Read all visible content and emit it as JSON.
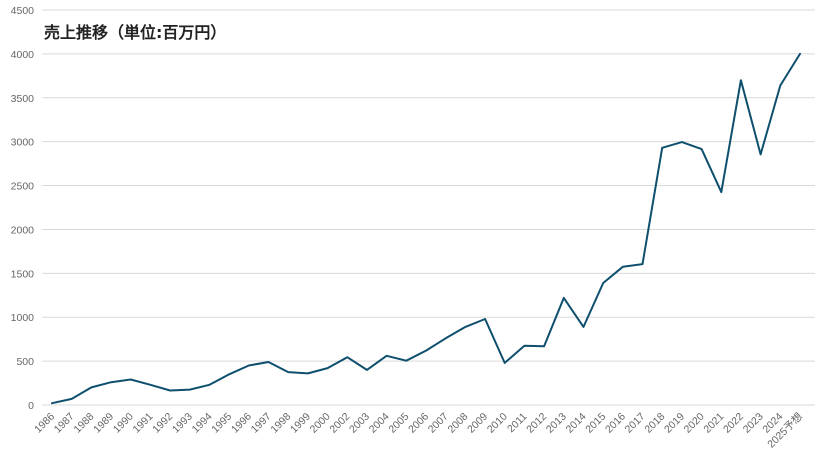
{
  "chart_data": {
    "type": "line",
    "title": "売上推移（単位:百万円）",
    "xlabel": "",
    "ylabel": "",
    "ylim": [
      0,
      4500
    ],
    "yticks": [
      0,
      500,
      1000,
      1500,
      2000,
      2500,
      3000,
      3500,
      4000,
      4500
    ],
    "grid": true,
    "categories": [
      "1986",
      "1987",
      "1988",
      "1989",
      "1990",
      "1991",
      "1992",
      "1993",
      "1994",
      "1995",
      "1996",
      "1997",
      "1998",
      "1999",
      "2000",
      "2002",
      "2003",
      "2004",
      "2005",
      "2006",
      "2007",
      "2008",
      "2009",
      "2010",
      "2011",
      "2012",
      "2013",
      "2014",
      "2015",
      "2016",
      "2017",
      "2018",
      "2019",
      "2020",
      "2021",
      "2022",
      "2023",
      "2024",
      "2025予想"
    ],
    "series": [
      {
        "values": [
          20,
          70,
          200,
          260,
          290,
          230,
          165,
          175,
          230,
          350,
          450,
          490,
          375,
          360,
          420,
          545,
          400,
          560,
          505,
          620,
          760,
          890,
          980,
          480,
          675,
          670,
          1220,
          890,
          1390,
          1575,
          1605,
          2930,
          2995,
          2915,
          2425,
          3700,
          2855,
          3640,
          4000
        ]
      }
    ],
    "colors": {
      "line": "#0e4f6e",
      "grid": "#d9d9d9",
      "axis_text": "#666666"
    }
  }
}
